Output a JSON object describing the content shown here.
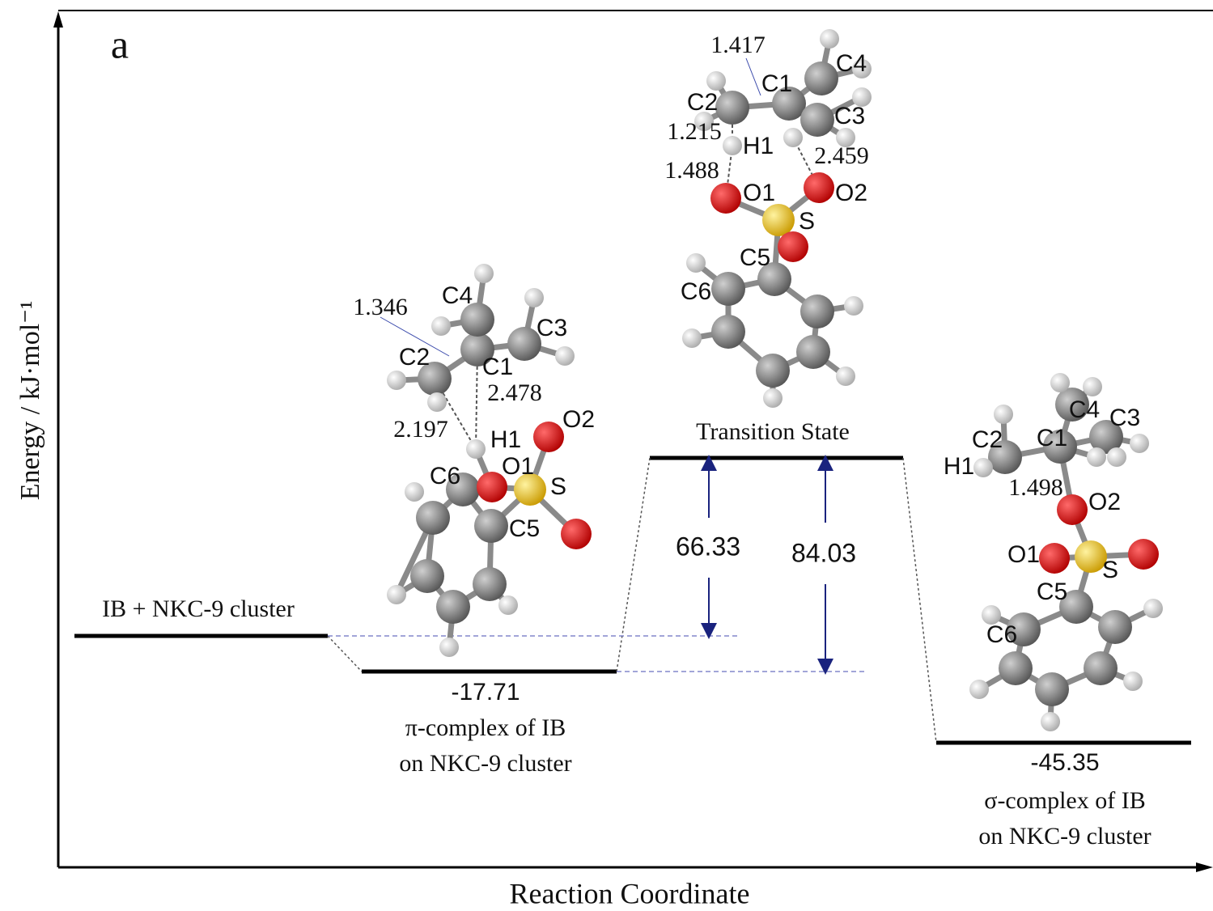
{
  "panel_label": "a",
  "y_axis_label": "Energy / kJ·mol⁻¹",
  "x_axis_label": "Reaction Coordinate",
  "states": [
    {
      "name": "IB + NKC-9 cluster"
    },
    {
      "energy": -17.71,
      "name_lines": [
        "π-complex of IB",
        "on NKC-9 cluster"
      ]
    },
    {
      "name": "Transition State"
    },
    {
      "energy": -45.35,
      "name_lines": [
        "σ-complex of IB",
        "on NKC-9 cluster"
      ]
    }
  ],
  "barriers": [
    66.33,
    84.03
  ],
  "molecules": [
    {
      "labels": [
        "1.346",
        "C4",
        "C3",
        "C2",
        "C1",
        "2.478",
        "2.197",
        "H1",
        "O2",
        "O1",
        "C6",
        "S",
        "C5"
      ]
    },
    {
      "labels": [
        "1.417",
        "C4",
        "C1",
        "C2",
        "C3",
        "1.215",
        "H1",
        "2.459",
        "1.488",
        "O1",
        "O2",
        "S",
        "C5",
        "C6"
      ]
    },
    {
      "labels": [
        "C4",
        "C3",
        "C2",
        "C1",
        "H1",
        "1.498",
        "O2",
        "O1",
        "S",
        "C5",
        "C6"
      ]
    }
  ]
}
